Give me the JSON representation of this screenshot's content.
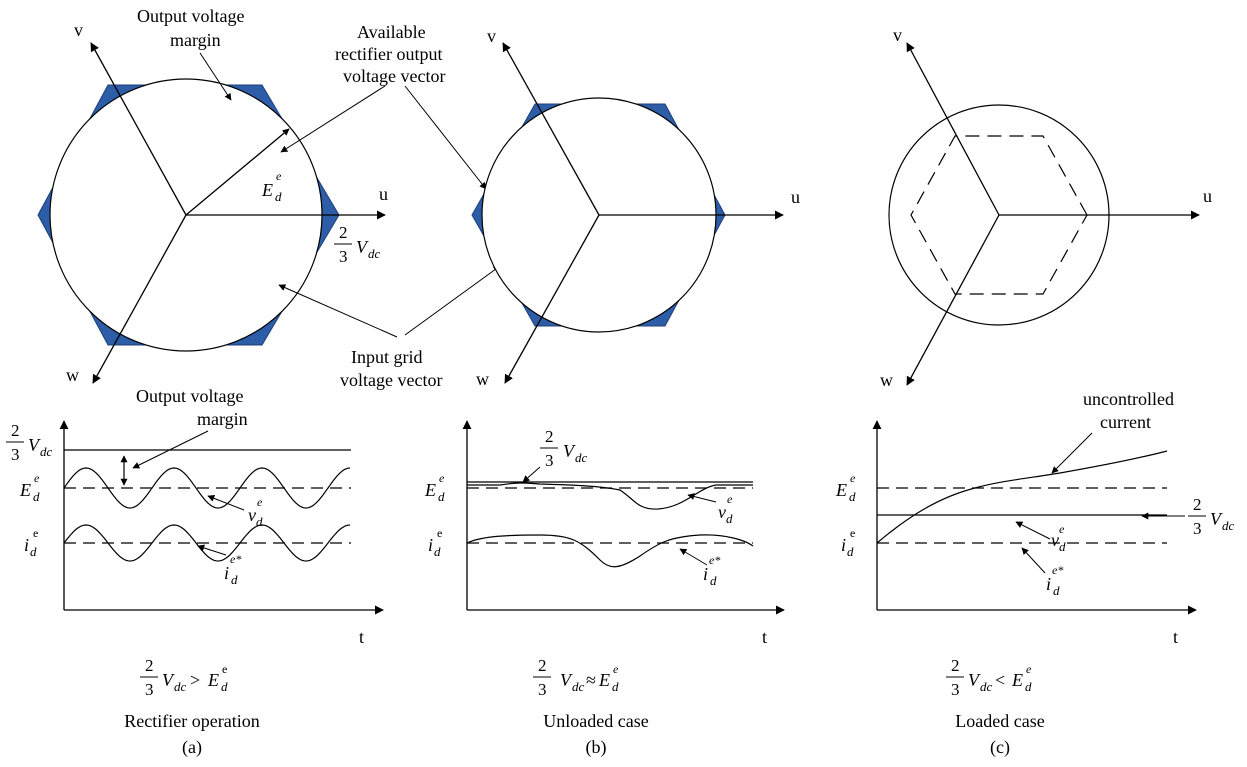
{
  "colors": {
    "hexagon_fill": "#2e5da8",
    "hexagon_stroke": "#1c3f7a",
    "line": "#000000"
  },
  "axes": {
    "u": "u",
    "v": "v",
    "w": "w",
    "t": "t"
  },
  "sym": {
    "two": "2",
    "three": "3",
    "V": "V",
    "dc": "dc",
    "E": "E",
    "i": "i",
    "v": "v",
    "d": "d",
    "e": "e",
    "e_roman": "e",
    "e_star": "e*",
    "gt": ">",
    "lt": "<",
    "approx": "≈"
  },
  "annotations": {
    "output_margin": [
      "Output voltage",
      "margin"
    ],
    "available_vector": [
      "Available",
      "rectifier output",
      "voltage vector"
    ],
    "input_grid": [
      "Input grid",
      "voltage vector"
    ],
    "output_margin_2": [
      "Output voltage",
      "margin"
    ],
    "uncontrolled": [
      "uncontrolled",
      "current"
    ]
  },
  "panels": [
    {
      "id": "a",
      "caption": "Rectifier operation",
      "label": "(a)"
    },
    {
      "id": "b",
      "caption": "Unloaded case",
      "label": "(b)"
    },
    {
      "id": "c",
      "caption": "Loaded case",
      "label": "(c)"
    }
  ]
}
